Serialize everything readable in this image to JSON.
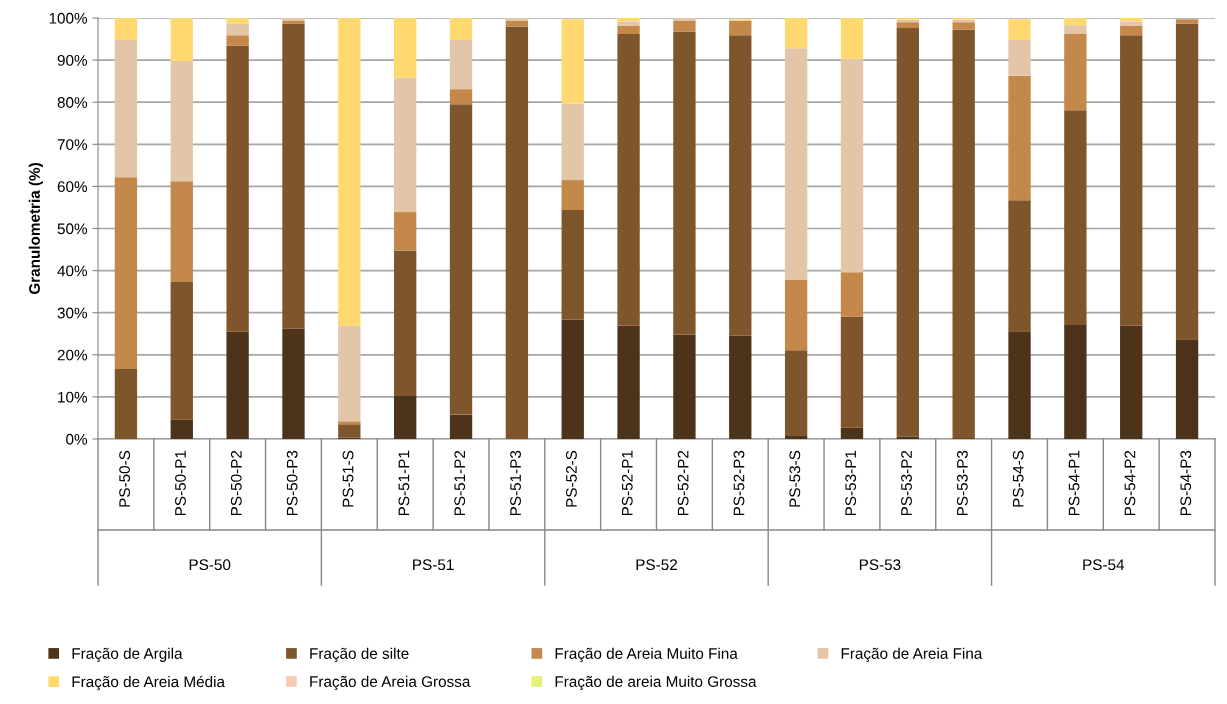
{
  "chart_data": {
    "type": "bar",
    "stacked": true,
    "ylabel": "Granulometria (%)",
    "categories": [
      "PS-50-S",
      "PS-50-P1",
      "PS-50-P2",
      "PS-50-P3",
      "PS-51-S",
      "PS-51-P1",
      "PS-51-P2",
      "PS-51-P3",
      "PS-52-S",
      "PS-52-P1",
      "PS-52-P2",
      "PS-52-P3",
      "PS-53-S",
      "PS-53-P1",
      "PS-53-P2",
      "PS-53-P3",
      "PS-54-S",
      "PS-54-P1",
      "PS-54-P2",
      "PS-54-P3"
    ],
    "annotations": [
      "PS-50",
      "PS-51",
      "PS-52",
      "PS-53",
      "PS-54"
    ],
    "series": [
      {
        "name": "Fração de Argila",
        "color": "#4d3319",
        "values": [
          0,
          4.6,
          25.5,
          26.2,
          0.3,
          10.2,
          5.8,
          0,
          28.3,
          26.9,
          24.8,
          24.5,
          0.9,
          2.7,
          0.6,
          0.2,
          25.6,
          27.1,
          26.9,
          23.7
        ]
      },
      {
        "name": "Fração de silte",
        "color": "#7f552b",
        "values": [
          16.6,
          32.7,
          67.9,
          72.4,
          3.2,
          34.6,
          73.7,
          98.0,
          26.1,
          69.3,
          72.0,
          71.4,
          20.2,
          26.4,
          97.0,
          97.0,
          31.1,
          51.0,
          69.0,
          75.0
        ]
      },
      {
        "name": "Fração de Areia Muito Fina",
        "color": "#c4884a",
        "values": [
          45.6,
          23.9,
          2.5,
          0.8,
          0.7,
          9.1,
          3.6,
          1.4,
          7.1,
          2.0,
          2.6,
          3.5,
          16.8,
          10.5,
          1.4,
          1.8,
          29.6,
          18.1,
          2.3,
          1.0
        ]
      },
      {
        "name": "Fração de Areia Fina",
        "color": "#e3c6a8",
        "values": [
          32.6,
          28.6,
          2.7,
          0.6,
          22.7,
          31.9,
          11.7,
          0.6,
          18.2,
          0.9,
          0.6,
          null,
          54.9,
          50.7,
          0.6,
          0.6,
          8.5,
          2.1,
          0.9,
          null
        ]
      },
      {
        "name": "Fração de Areia Média",
        "color": "#ffd970",
        "values": [
          5.2,
          10.2,
          1.4,
          0,
          73.1,
          14.2,
          5.2,
          0,
          20.0,
          0.9,
          0,
          0.3,
          7.2,
          9.7,
          0.4,
          0.4,
          4.9,
          1.7,
          0.9,
          0
        ]
      },
      {
        "name": "Fração de Areia Grossa",
        "color": "#f8cbb4",
        "values": [
          0,
          0,
          0,
          0,
          0,
          0,
          0,
          0,
          null,
          0,
          0,
          0,
          0,
          0,
          0,
          0,
          null,
          0,
          0,
          0
        ]
      },
      {
        "name": "Fração de areia Muito Grossa",
        "color": "#e6f07a",
        "values": [
          0,
          0,
          0,
          0,
          0,
          0,
          0,
          0,
          0,
          0,
          0,
          0,
          0,
          0,
          0,
          0,
          0,
          0,
          0,
          0
        ]
      }
    ],
    "ylim": [
      0,
      100
    ],
    "yticks": [
      {
        "value": 0,
        "label": "0%"
      },
      {
        "value": 10,
        "label": "10%"
      },
      {
        "value": 20,
        "label": "20%"
      },
      {
        "value": 30,
        "label": "30%"
      },
      {
        "value": 40,
        "label": "40%"
      },
      {
        "value": 50,
        "label": "50%"
      },
      {
        "value": 60,
        "label": "60%"
      },
      {
        "value": 70,
        "label": "70%"
      },
      {
        "value": 80,
        "label": "80%"
      },
      {
        "value": 90,
        "label": "90%"
      },
      {
        "value": 100,
        "label": "100%"
      }
    ],
    "grid": "y",
    "legend": "bottom"
  }
}
